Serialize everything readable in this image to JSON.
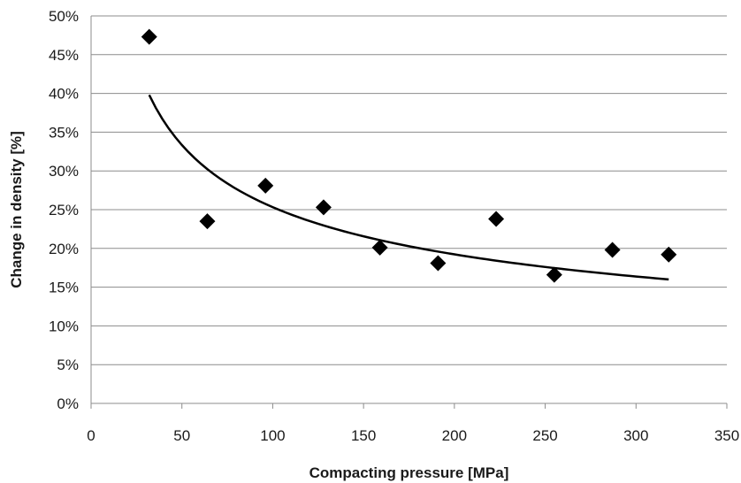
{
  "chart_data": {
    "type": "scatter",
    "title": "",
    "xlabel": "Compacting pressure [MPa]",
    "ylabel": "Change in density [%]",
    "xlim": [
      0,
      350
    ],
    "ylim": [
      0,
      50
    ],
    "x_ticks": [
      0,
      50,
      100,
      150,
      200,
      250,
      300,
      350
    ],
    "y_ticks": [
      0,
      5,
      10,
      15,
      20,
      25,
      30,
      35,
      40,
      45,
      50
    ],
    "x_tick_labels": [
      "0",
      "50",
      "100",
      "150",
      "200",
      "250",
      "300",
      "350"
    ],
    "y_tick_labels": [
      "0%",
      "5%",
      "10%",
      "15%",
      "20%",
      "25%",
      "30%",
      "35%",
      "40%",
      "45%",
      "50%"
    ],
    "grid": "horizontal",
    "legend": "none",
    "series": [
      {
        "marker": "diamond",
        "color": "#000000",
        "points": [
          {
            "x": 32,
            "y": 47.3
          },
          {
            "x": 64,
            "y": 23.5
          },
          {
            "x": 96,
            "y": 28.1
          },
          {
            "x": 128,
            "y": 25.3
          },
          {
            "x": 159,
            "y": 20.1
          },
          {
            "x": 191,
            "y": 18.1
          },
          {
            "x": 223,
            "y": 23.8
          },
          {
            "x": 255,
            "y": 16.6
          },
          {
            "x": 287,
            "y": 19.8
          },
          {
            "x": 318,
            "y": 19.2
          }
        ]
      }
    ],
    "trendline": {
      "type": "power",
      "color": "#000000",
      "x_range": [
        32,
        318
      ],
      "y_range": [
        39.8,
        16.0
      ]
    }
  }
}
